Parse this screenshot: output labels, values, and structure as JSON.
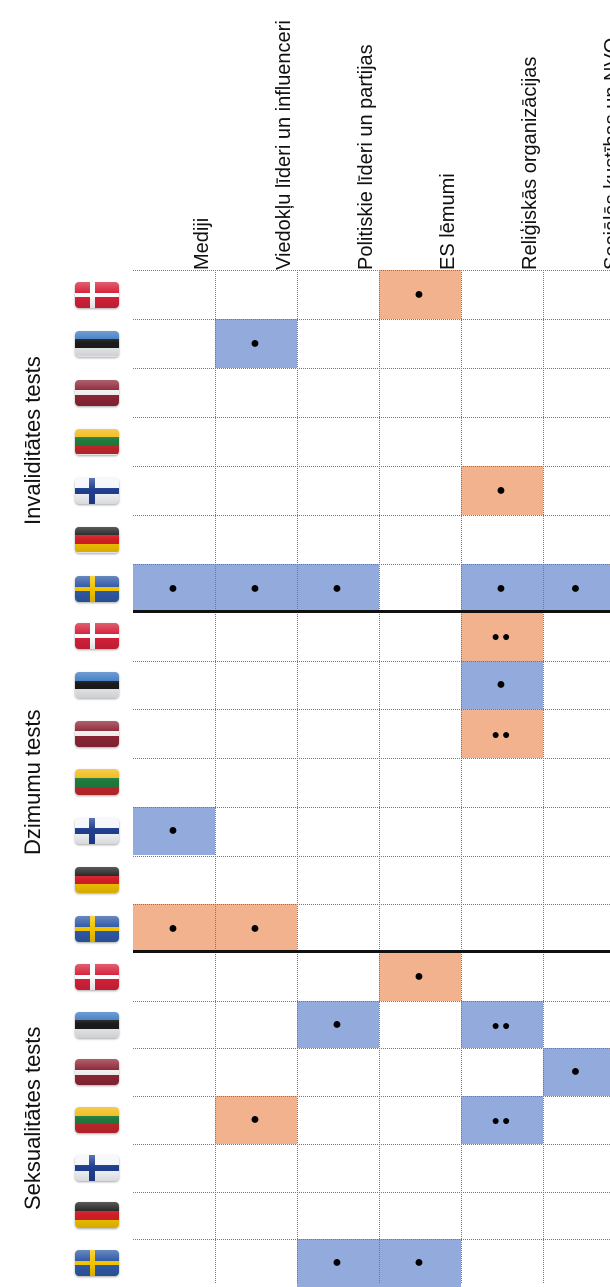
{
  "columns": [
    "Mediji",
    "Viedokļu līderi un influenceri",
    "Politiskie līderi un partijas",
    "ES lēmumi",
    "Reliģiskās organizācijas",
    "Sociālās kustības un NVO"
  ],
  "colors": {
    "blue": "#93abdc",
    "orange": "#f2b28e"
  },
  "groups": [
    {
      "label": "Invaliditātes tests",
      "rows": [
        {
          "flag": "denmark-flag",
          "cells": [
            null,
            null,
            null,
            {
              "color": "orange",
              "dots": 1
            },
            null,
            null
          ]
        },
        {
          "flag": "estonia-flag",
          "cells": [
            null,
            {
              "color": "blue",
              "dots": 1
            },
            null,
            null,
            null,
            null
          ]
        },
        {
          "flag": "latvia-flag",
          "cells": [
            null,
            null,
            null,
            null,
            null,
            null
          ]
        },
        {
          "flag": "lithuania-flag",
          "cells": [
            null,
            null,
            null,
            null,
            null,
            null
          ]
        },
        {
          "flag": "finland-flag",
          "cells": [
            null,
            null,
            null,
            null,
            {
              "color": "orange",
              "dots": 1
            },
            null
          ]
        },
        {
          "flag": "germany-flag",
          "cells": [
            null,
            null,
            null,
            null,
            null,
            null
          ]
        },
        {
          "flag": "sweden-flag",
          "cells": [
            {
              "color": "blue",
              "dots": 1
            },
            {
              "color": "blue",
              "dots": 1
            },
            {
              "color": "blue",
              "dots": 1
            },
            null,
            {
              "color": "blue",
              "dots": 1
            },
            {
              "color": "blue",
              "dots": 1
            }
          ]
        }
      ]
    },
    {
      "label": "Dzimumu tests",
      "rows": [
        {
          "flag": "denmark-flag",
          "cells": [
            null,
            null,
            null,
            null,
            {
              "color": "orange",
              "dots": 2
            },
            null
          ]
        },
        {
          "flag": "estonia-flag",
          "cells": [
            null,
            null,
            null,
            null,
            {
              "color": "blue",
              "dots": 1
            },
            null
          ]
        },
        {
          "flag": "latvia-flag",
          "cells": [
            null,
            null,
            null,
            null,
            {
              "color": "orange",
              "dots": 2
            },
            null
          ]
        },
        {
          "flag": "lithuania-flag",
          "cells": [
            null,
            null,
            null,
            null,
            null,
            null
          ]
        },
        {
          "flag": "finland-flag",
          "cells": [
            {
              "color": "blue",
              "dots": 1
            },
            null,
            null,
            null,
            null,
            null
          ]
        },
        {
          "flag": "germany-flag",
          "cells": [
            null,
            null,
            null,
            null,
            null,
            null
          ]
        },
        {
          "flag": "sweden-flag",
          "cells": [
            {
              "color": "orange",
              "dots": 1
            },
            {
              "color": "orange",
              "dots": 1
            },
            null,
            null,
            null,
            null
          ]
        }
      ]
    },
    {
      "label": "Seksualitātes tests",
      "rows": [
        {
          "flag": "denmark-flag",
          "cells": [
            null,
            null,
            null,
            {
              "color": "orange",
              "dots": 1
            },
            null,
            null
          ]
        },
        {
          "flag": "estonia-flag",
          "cells": [
            null,
            null,
            {
              "color": "blue",
              "dots": 1
            },
            null,
            {
              "color": "blue",
              "dots": 2
            },
            null
          ]
        },
        {
          "flag": "latvia-flag",
          "cells": [
            null,
            null,
            null,
            null,
            null,
            {
              "color": "blue",
              "dots": 1
            }
          ]
        },
        {
          "flag": "lithuania-flag",
          "cells": [
            null,
            {
              "color": "orange",
              "dots": 1
            },
            null,
            null,
            {
              "color": "blue",
              "dots": 2
            },
            null
          ]
        },
        {
          "flag": "finland-flag",
          "cells": [
            null,
            null,
            null,
            null,
            null,
            null
          ]
        },
        {
          "flag": "germany-flag",
          "cells": [
            null,
            null,
            null,
            null,
            null,
            null
          ]
        },
        {
          "flag": "sweden-flag",
          "cells": [
            null,
            null,
            {
              "color": "blue",
              "dots": 1
            },
            {
              "color": "blue",
              "dots": 1
            },
            null,
            null
          ]
        }
      ]
    }
  ]
}
